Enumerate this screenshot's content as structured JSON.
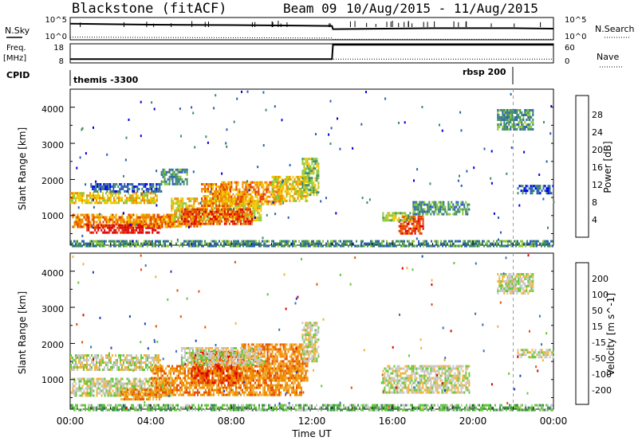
{
  "header": {
    "station": "Blackstone (fitACF)",
    "beam": "Beam 09",
    "date_range": "10/Aug/2015 - 11/Aug/2015"
  },
  "top_panels": {
    "nsky_label": "N.Sky",
    "nsky_ticks": [
      "10^5",
      "10^0"
    ],
    "nsearch_label": "N.Search",
    "nsearch_ticks": [
      "10^5",
      "10^0"
    ],
    "freq_label": "Freq.",
    "freq_unit": "[MHz]",
    "freq_ticks": [
      "18",
      "8"
    ],
    "nave_label": "Nave",
    "nave_ticks": [
      "60",
      "0"
    ],
    "cpid_label": "CPID",
    "cpid_segments": [
      {
        "name": "themis -3300",
        "start_hour": 0,
        "end_hour": 22
      },
      {
        "name": "rbsp 200",
        "start_hour": 22,
        "end_hour": 24
      }
    ]
  },
  "x_axis": {
    "label": "Time UT",
    "ticks": [
      "00:00",
      "04:00",
      "08:00",
      "12:00",
      "16:00",
      "20:00",
      "00:00"
    ],
    "range_hours": [
      0,
      24
    ]
  },
  "power_panel": {
    "ylabel": "Slant Range [km]",
    "yticks": [
      "1000",
      "2000",
      "3000",
      "4000"
    ],
    "colorbar_label": "Power [dB]",
    "colorbar_ticks": [
      "4",
      "8",
      "12",
      "16",
      "20",
      "24",
      "28"
    ],
    "colors": [
      "#0000e6",
      "#2a5fb4",
      "#3c8c64",
      "#8cc83c",
      "#f0c800",
      "#f08c00",
      "#e63c00",
      "#dc0000"
    ]
  },
  "velocity_panel": {
    "ylabel": "Slant Range [km]",
    "yticks": [
      "1000",
      "2000",
      "3000",
      "4000"
    ],
    "colorbar_label": "Velocity [m s^-1]",
    "colorbar_ticks": [
      "200",
      "100",
      "50",
      "15",
      "-15",
      "-50",
      "-100",
      "-200"
    ],
    "colors": [
      "#1e3cc8",
      "#3c6eb4",
      "#3c8c50",
      "#64c83c",
      "#c8c8c8",
      "#f0b43c",
      "#f08c00",
      "#e65000",
      "#dc0000"
    ]
  },
  "chart_data": [
    {
      "type": "line",
      "name": "top-panel-nsky-nsearch",
      "x_unit": "hour UT",
      "series": [
        {
          "values": [
            [
              0,
              3.6
            ],
            [
              4,
              3.4
            ],
            [
              8,
              3.3
            ],
            [
              13,
              3.1
            ],
            [
              13.05,
              2.4
            ],
            [
              18,
              2.6
            ],
            [
              22,
              2.6
            ],
            [
              24,
              2.5
            ]
          ]
        },
        {
          "values": [
            [
              0,
              0.6
            ],
            [
              6,
              0.5
            ],
            [
              13,
              0.4
            ],
            [
              13.05,
              0.1
            ],
            [
              24,
              0.1
            ]
          ]
        }
      ],
      "ylim": [
        0,
        5
      ]
    },
    {
      "type": "line",
      "name": "top-panel-freq-nave",
      "x_unit": "hour UT",
      "series": [
        {
          "values": [
            [
              0,
              10
            ],
            [
              13,
              10
            ],
            [
              13.05,
              17.5
            ],
            [
              24,
              17.5
            ]
          ]
        },
        {
          "values": [
            [
              0,
              10
            ],
            [
              24,
              10
            ]
          ]
        }
      ],
      "ylim": [
        8,
        18
      ]
    },
    {
      "type": "heatmap",
      "name": "power-range-time",
      "x_unit": "hour UT",
      "y_unit": "km",
      "xlim": [
        0,
        24
      ],
      "ylim": [
        180,
        4500
      ],
      "value_unit": "dB",
      "bands": [
        {
          "t0": 0.0,
          "t1": 4.3,
          "r0": 1350,
          "r1": 1650,
          "level": 4
        },
        {
          "t0": 0.1,
          "t1": 5.2,
          "r0": 700,
          "r1": 1050,
          "level": 5
        },
        {
          "t0": 0.8,
          "t1": 4.5,
          "r0": 520,
          "r1": 760,
          "level": 7
        },
        {
          "t0": 3.5,
          "t1": 6.5,
          "r0": 700,
          "r1": 1000,
          "level": 5
        },
        {
          "t0": 5.0,
          "t1": 9.5,
          "r0": 900,
          "r1": 1500,
          "level": 4
        },
        {
          "t0": 5.5,
          "t1": 9.0,
          "r0": 750,
          "r1": 1200,
          "level": 6
        },
        {
          "t0": 6.5,
          "t1": 8.0,
          "r0": 1300,
          "r1": 1900,
          "level": 5
        },
        {
          "t0": 7.5,
          "t1": 10.5,
          "r0": 1300,
          "r1": 1950,
          "level": 5
        },
        {
          "t0": 10.0,
          "t1": 11.8,
          "r0": 1400,
          "r1": 2100,
          "level": 4
        },
        {
          "t0": 11.5,
          "t1": 12.3,
          "r0": 1600,
          "r1": 2600,
          "level": 3
        },
        {
          "t0": 4.5,
          "t1": 5.8,
          "r0": 1900,
          "r1": 2300,
          "level": 2
        },
        {
          "t0": 1.0,
          "t1": 4.5,
          "r0": 1650,
          "r1": 1900,
          "level": 1
        },
        {
          "t0": 0.0,
          "t1": 24.0,
          "r0": 180,
          "r1": 320,
          "level": 2
        },
        {
          "t0": 16.3,
          "t1": 17.5,
          "r0": 500,
          "r1": 1000,
          "level": 6
        },
        {
          "t0": 15.5,
          "t1": 17.0,
          "r0": 900,
          "r1": 1100,
          "level": 3
        },
        {
          "t0": 17.0,
          "t1": 19.8,
          "r0": 1050,
          "r1": 1400,
          "level": 2
        },
        {
          "t0": 21.2,
          "t1": 23.0,
          "r0": 3400,
          "r1": 3950,
          "level": 2
        },
        {
          "t0": 22.2,
          "t1": 24.0,
          "r0": 1650,
          "r1": 1850,
          "level": 1
        }
      ]
    },
    {
      "type": "heatmap",
      "name": "velocity-range-time",
      "x_unit": "hour UT",
      "y_unit": "km",
      "xlim": [
        0,
        24
      ],
      "ylim": [
        180,
        4500
      ],
      "value_unit": "m s^-1",
      "bands": [
        {
          "t0": 0.0,
          "t1": 4.5,
          "r0": 1300,
          "r1": 1700,
          "level": 4
        },
        {
          "t0": 0.1,
          "t1": 5.0,
          "r0": 550,
          "r1": 1050,
          "level": 4
        },
        {
          "t0": 2.5,
          "t1": 4.5,
          "r0": 450,
          "r1": 750,
          "level": 6
        },
        {
          "t0": 4.0,
          "t1": 11.5,
          "r0": 550,
          "r1": 1400,
          "level": 6
        },
        {
          "t0": 6.0,
          "t1": 8.5,
          "r0": 900,
          "r1": 1800,
          "level": 7
        },
        {
          "t0": 8.5,
          "t1": 11.8,
          "r0": 1000,
          "r1": 2000,
          "level": 6
        },
        {
          "t0": 5.5,
          "t1": 9.5,
          "r0": 1400,
          "r1": 1900,
          "level": 4
        },
        {
          "t0": 11.5,
          "t1": 12.3,
          "r0": 1500,
          "r1": 2600,
          "level": 4
        },
        {
          "t0": 0.0,
          "t1": 24.0,
          "r0": 180,
          "r1": 320,
          "level": 3
        },
        {
          "t0": 15.5,
          "t1": 19.8,
          "r0": 650,
          "r1": 1400,
          "level": 4
        },
        {
          "t0": 21.2,
          "t1": 23.0,
          "r0": 3400,
          "r1": 3950,
          "level": 4
        },
        {
          "t0": 22.2,
          "t1": 24.0,
          "r0": 1650,
          "r1": 1850,
          "level": 4
        }
      ]
    }
  ]
}
